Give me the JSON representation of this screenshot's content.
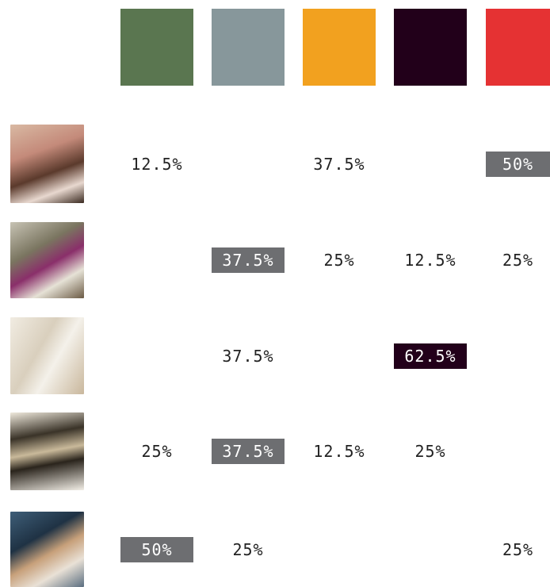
{
  "columns": [
    {
      "color": "#5a7650"
    },
    {
      "color": "#87979b"
    },
    {
      "color": "#f2a11f"
    },
    {
      "color": "#22001a"
    },
    {
      "color": "#e53233"
    }
  ],
  "rows": [
    {
      "cells": [
        "12.5%",
        null,
        "37.5%",
        null,
        "50%"
      ],
      "highlight": {
        "column": 4,
        "color": "#6d6e71"
      }
    },
    {
      "cells": [
        null,
        "37.5%",
        "25%",
        "12.5%",
        "25%"
      ],
      "highlight": {
        "column": 1,
        "color": "#6d6e71"
      }
    },
    {
      "cells": [
        null,
        "37.5%",
        null,
        "62.5%",
        null
      ],
      "highlight": {
        "column": 3,
        "color": "#22001a"
      }
    },
    {
      "cells": [
        "25%",
        "37.5%",
        "12.5%",
        "25%",
        null
      ],
      "highlight": {
        "column": 1,
        "color": "#6d6e71"
      }
    },
    {
      "cells": [
        "50%",
        "25%",
        null,
        null,
        "25%"
      ],
      "highlight": {
        "column": 0,
        "color": "#6d6e71"
      }
    }
  ]
}
